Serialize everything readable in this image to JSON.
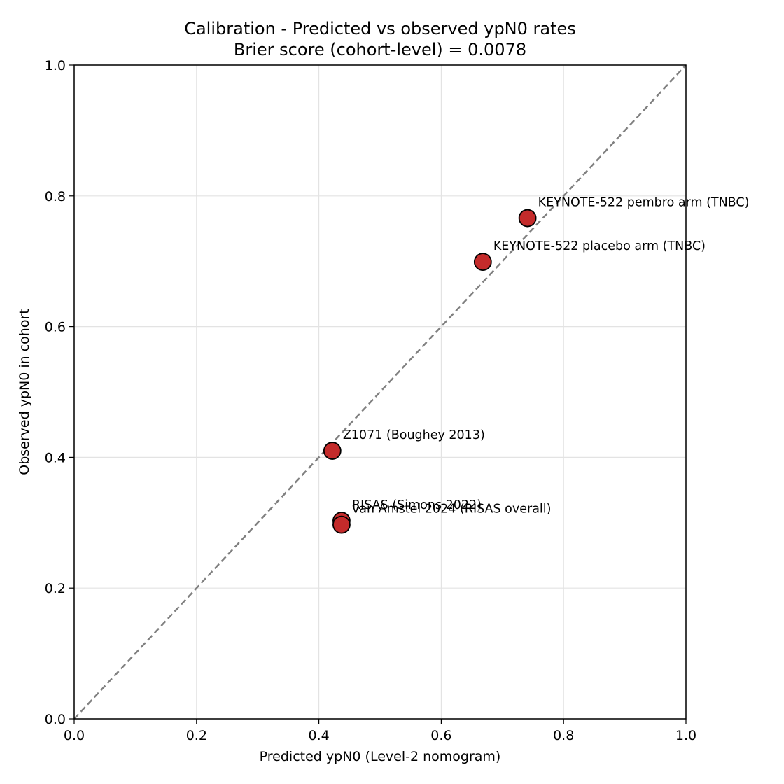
{
  "chart_data": {
    "type": "scatter",
    "title": "Calibration - Predicted vs observed ypN0 rates",
    "subtitle": "Brier score (cohort-level) = 0.0078",
    "xlabel": "Predicted ypN0 (Level-2 nomogram)",
    "ylabel": "Observed ypN0 in cohort",
    "xlim": [
      0.0,
      1.0
    ],
    "ylim": [
      0.0,
      1.0
    ],
    "xticks": [
      "0.0",
      "0.2",
      "0.4",
      "0.6",
      "0.8",
      "1.0"
    ],
    "yticks": [
      "0.0",
      "0.2",
      "0.4",
      "0.6",
      "0.8",
      "1.0"
    ],
    "grid": true,
    "reference_line": {
      "style": "dashed",
      "from": [
        0,
        0
      ],
      "to": [
        1,
        1
      ],
      "color": "#808080"
    },
    "marker_color": "#c42b2b",
    "points": [
      {
        "label": "KEYNOTE-522 pembro arm (TNBC)",
        "x": 0.741,
        "y": 0.766
      },
      {
        "label": "KEYNOTE-522 placebo arm (TNBC)",
        "x": 0.668,
        "y": 0.699
      },
      {
        "label": "Z1071 (Boughey 2013)",
        "x": 0.422,
        "y": 0.41
      },
      {
        "label": "RISAS (Simons 2022)",
        "x": 0.437,
        "y": 0.303
      },
      {
        "label": "van Amstel 2024 (RISAS overall)",
        "x": 0.437,
        "y": 0.297
      }
    ]
  }
}
